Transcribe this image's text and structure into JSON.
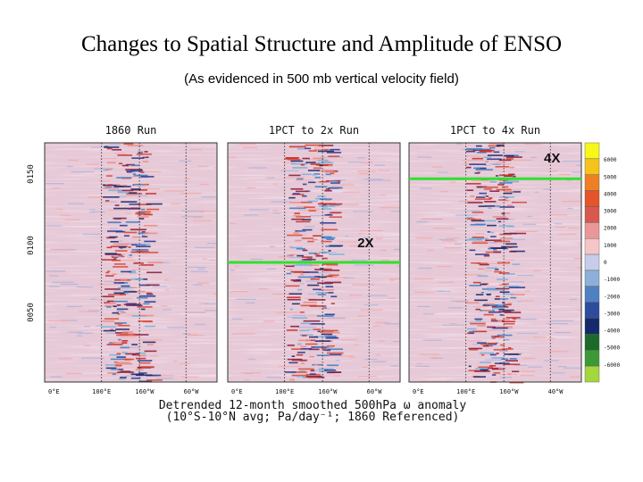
{
  "slide": {
    "title": "Changes to Spatial Structure and Amplitude of ENSO",
    "subtitle": "(As evidenced in 500 mb vertical velocity field)"
  },
  "chart_data": {
    "type": "heatmap",
    "xlabel": "Detrended 12-month smoothed 500hPa ω anomaly",
    "xlabel_line2": "(10°S-10°N avg; Pa/day⁻¹; 1860 Referenced)",
    "panels": [
      {
        "title": "1860 Run",
        "x_ticks": [
          "0°E",
          "100°E",
          "160°W",
          "60°W"
        ]
      },
      {
        "title": "1PCT to 2x Run",
        "x_ticks": [
          "0°E",
          "100°E",
          "160°W",
          "60°W"
        ],
        "marker": {
          "label": "2X",
          "level": 0.5
        }
      },
      {
        "title": "1PCT to 4x Run",
        "x_ticks": [
          "0°E",
          "100°E",
          "160°W",
          "40°W"
        ],
        "marker": {
          "label": "4X",
          "level": 0.15
        }
      }
    ],
    "y_ticks": [
      "0150",
      "0100",
      "0050"
    ],
    "colorbar": {
      "levels": [
        "6000",
        "5000",
        "4000",
        "3000",
        "2000",
        "1000",
        "0",
        "-1000",
        "-2000",
        "-3000",
        "-4000",
        "-5000",
        "-6000"
      ],
      "colors": [
        "#f7f719",
        "#f6c31b",
        "#ef7f24",
        "#e5542b",
        "#d8584f",
        "#e99798",
        "#f5c6c7",
        "#c7cde8",
        "#8eb0d8",
        "#4f80c2",
        "#2e4c9c",
        "#152a6c",
        "#1c6a2a",
        "#3c9a36",
        "#a5d63c"
      ]
    },
    "marker_color": "#2fe02f"
  }
}
